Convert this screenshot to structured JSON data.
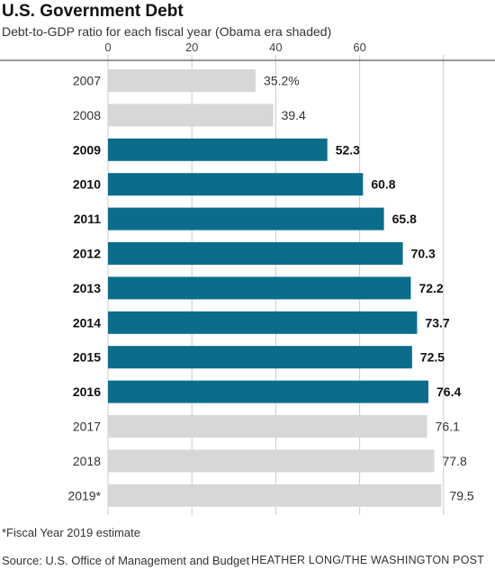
{
  "header": {
    "title": "U.S. Government Debt",
    "subtitle": "Debt-to-GDP ratio for each fiscal year (Obama era shaded)"
  },
  "footer": {
    "footnote": "*Fiscal Year 2019 estimate",
    "source": "Source: U.S. Office of Management and Budget",
    "credit": "HEATHER LONG/THE WASHINGTON POST"
  },
  "colors": {
    "highlight": "#0b6d8b",
    "base": "#d7d7d7",
    "grid": "#cccccc",
    "axis": "#333333"
  },
  "chart_data": {
    "type": "bar",
    "orientation": "horizontal",
    "title": "U.S. Government Debt",
    "subtitle": "Debt-to-GDP ratio for each fiscal year (Obama era shaded)",
    "categories": [
      "2007",
      "2008",
      "2009",
      "2010",
      "2011",
      "2012",
      "2013",
      "2014",
      "2015",
      "2016",
      "2017",
      "2018",
      "2019*"
    ],
    "values": [
      35.2,
      39.4,
      52.3,
      60.8,
      65.8,
      70.3,
      72.2,
      73.7,
      72.5,
      76.4,
      76.1,
      77.8,
      79.5
    ],
    "value_labels": [
      "35.2%",
      "39.4",
      "52.3",
      "60.8",
      "65.8",
      "70.3",
      "72.2",
      "73.7",
      "72.5",
      "76.4",
      "76.1",
      "77.8",
      "79.5"
    ],
    "highlighted": [
      false,
      false,
      true,
      true,
      true,
      true,
      true,
      true,
      true,
      true,
      false,
      false,
      false
    ],
    "xlim": [
      0,
      80
    ],
    "xticks": [
      0,
      20,
      40,
      60
    ],
    "grid": true,
    "xaxis_position": "top"
  }
}
